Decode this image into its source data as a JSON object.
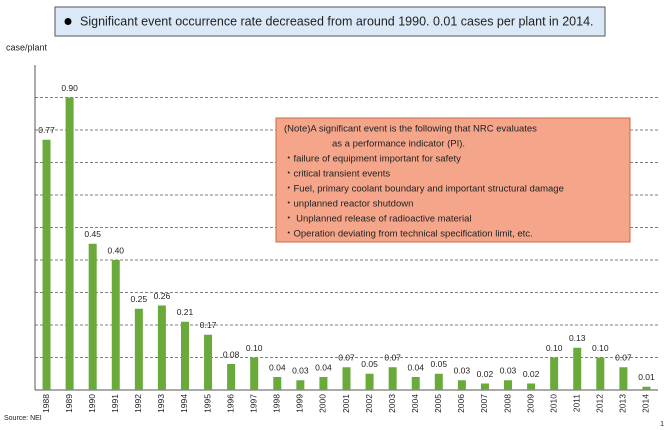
{
  "chart_data": {
    "type": "bar",
    "title": "Significant event occurrence rate decreased from around 1990.  0.01 cases per plant in 2014.",
    "y_label": "case/plant",
    "categories": [
      "1988",
      "1989",
      "1990",
      "1991",
      "1992",
      "1993",
      "1994",
      "1995",
      "1996",
      "1997",
      "1998",
      "1999",
      "2000",
      "2001",
      "2002",
      "2003",
      "2004",
      "2005",
      "2006",
      "2007",
      "2008",
      "2009",
      "2010",
      "2011",
      "2012",
      "2013",
      "2014"
    ],
    "values": [
      0.77,
      0.9,
      0.45,
      0.4,
      0.25,
      0.26,
      0.21,
      0.17,
      0.08,
      0.1,
      0.04,
      0.03,
      0.04,
      0.07,
      0.05,
      0.07,
      0.04,
      0.05,
      0.03,
      0.02,
      0.03,
      0.02,
      0.1,
      0.13,
      0.1,
      0.07,
      0.01
    ],
    "value_labels": [
      "0.77",
      "0.90",
      "0.45",
      "0.40",
      "0.25",
      "0.26",
      "0.21",
      "0.17",
      "0.08",
      "0.10",
      "0.04",
      "0.03",
      "0.04",
      "0.07",
      "0.05",
      "0.07",
      "0.04",
      "0.05",
      "0.03",
      "0.02",
      "0.03",
      "0.02",
      "0.10",
      "0.13",
      "0.10",
      "0.07",
      "0.01"
    ],
    "color": "#6aaa3a",
    "ylim": [
      0,
      1.0
    ],
    "gridlines": [
      0.1,
      0.2,
      0.3,
      0.4,
      0.5,
      0.6,
      0.7,
      0.8,
      0.9
    ],
    "grid": true,
    "note": [
      "(Note)A significant event is the following that NRC evaluates",
      "as a performance indicator (PI).",
      "・failure of equipment important for safety",
      "・critical transient events",
      "・Fuel, primary coolant boundary and important structural damage",
      "・unplanned reactor shutdown",
      "・ Unplanned release of radioactive material",
      "・Operation deviating from technical specification  limit, etc."
    ],
    "source": "Source: NEI",
    "page_number": "1"
  }
}
